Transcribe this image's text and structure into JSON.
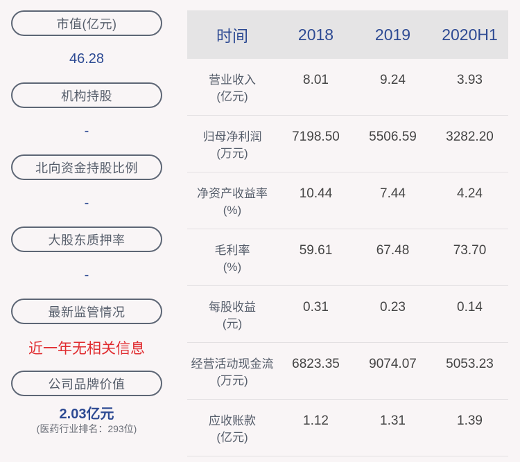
{
  "left_panel": {
    "items": [
      {
        "label": "市值(亿元)",
        "value": "46.28",
        "style": "blue"
      },
      {
        "label": "机构持股",
        "value": "-",
        "style": "blue"
      },
      {
        "label": "北向资金持股比例",
        "value": "-",
        "style": "blue"
      },
      {
        "label": "大股东质押率",
        "value": "-",
        "style": "blue"
      },
      {
        "label": "最新监管情况",
        "value": "近一年无相关信息",
        "style": "red"
      },
      {
        "label": "公司品牌价值",
        "value": "2.03亿元",
        "sub": "(医药行业排名：293位)",
        "style": "brand"
      }
    ]
  },
  "colors": {
    "accent_blue": "#2d4a93",
    "alert_red": "#e02b2f",
    "pill_border": "#5d6675",
    "header_bg": "#e5e4e5",
    "page_bg": "#f9f5f6"
  },
  "table": {
    "headers": [
      "时间",
      "2018",
      "2019",
      "2020H1"
    ],
    "rows": [
      {
        "label": "营业收入",
        "unit": "(亿元)",
        "values": [
          "8.01",
          "9.24",
          "3.93"
        ]
      },
      {
        "label": "归母净利润",
        "unit": "(万元)",
        "values": [
          "7198.50",
          "5506.59",
          "3282.20"
        ]
      },
      {
        "label": "净资产收益率",
        "unit": "(%)",
        "values": [
          "10.44",
          "7.44",
          "4.24"
        ]
      },
      {
        "label": "毛利率",
        "unit": "(%)",
        "values": [
          "59.61",
          "67.48",
          "73.70"
        ]
      },
      {
        "label": "每股收益",
        "unit": "(元)",
        "values": [
          "0.31",
          "0.23",
          "0.14"
        ]
      },
      {
        "label": "经营活动现金流",
        "unit": "(万元)",
        "values": [
          "6823.35",
          "9074.07",
          "5053.23"
        ]
      },
      {
        "label": "应收账款",
        "unit": "(亿元)",
        "values": [
          "1.12",
          "1.31",
          "1.39"
        ]
      }
    ]
  }
}
